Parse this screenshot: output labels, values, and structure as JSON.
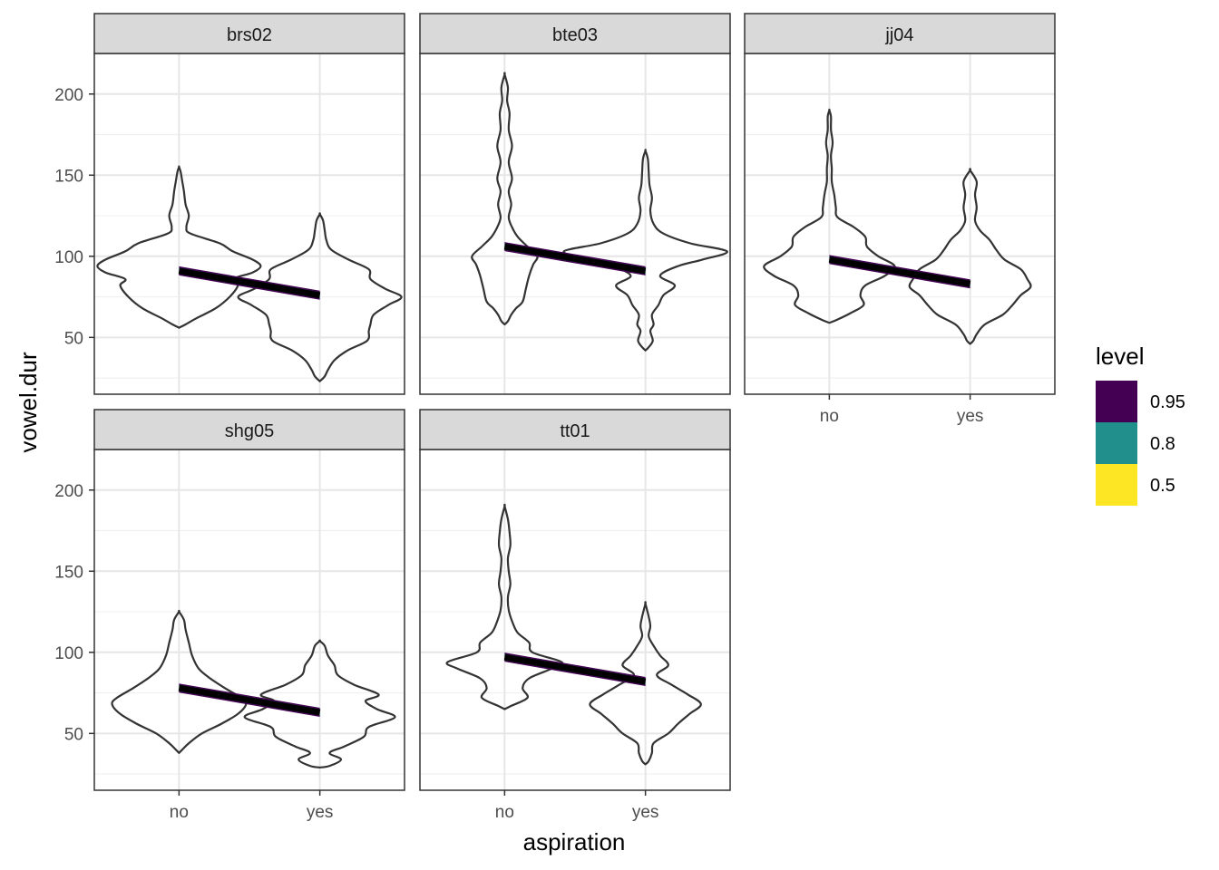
{
  "chart_data": {
    "type": "violin",
    "xlabel": "aspiration",
    "ylabel": "vowel.dur",
    "categories": [
      "no",
      "yes"
    ],
    "ylim": [
      15,
      225
    ],
    "yticks": [
      50,
      100,
      150,
      200
    ],
    "grid": true,
    "legend": {
      "title": "level",
      "placement": "right",
      "entries": [
        {
          "label": "0.95",
          "color": "#440154"
        },
        {
          "label": "0.8",
          "color": "#21908C"
        },
        {
          "label": "0.5",
          "color": "#FDE725"
        }
      ]
    },
    "panels": [
      {
        "name": "brs02",
        "x_axis_shown": false,
        "fit_line": {
          "no": 91,
          "yes": 76
        },
        "violins": [
          {
            "category": "no",
            "profile": [
              [
                56,
                0.0
              ],
              [
                58,
                0.08
              ],
              [
                62,
                0.22
              ],
              [
                68,
                0.45
              ],
              [
                75,
                0.62
              ],
              [
                82,
                0.72
              ],
              [
                86,
                0.66
              ],
              [
                90,
                0.9
              ],
              [
                94,
                1.0
              ],
              [
                98,
                0.9
              ],
              [
                103,
                0.66
              ],
              [
                108,
                0.5
              ],
              [
                114,
                0.14
              ],
              [
                118,
                0.09
              ],
              [
                125,
                0.12
              ],
              [
                132,
                0.08
              ],
              [
                140,
                0.06
              ],
              [
                146,
                0.04
              ],
              [
                152,
                0.02
              ],
              [
                155,
                0.0
              ]
            ]
          },
          {
            "category": "yes",
            "profile": [
              [
                23,
                0.0
              ],
              [
                26,
                0.06
              ],
              [
                30,
                0.1
              ],
              [
                36,
                0.18
              ],
              [
                42,
                0.34
              ],
              [
                48,
                0.58
              ],
              [
                54,
                0.6
              ],
              [
                58,
                0.62
              ],
              [
                64,
                0.66
              ],
              [
                70,
                0.84
              ],
              [
                75,
                1.0
              ],
              [
                80,
                0.8
              ],
              [
                86,
                0.62
              ],
              [
                92,
                0.6
              ],
              [
                98,
                0.35
              ],
              [
                104,
                0.14
              ],
              [
                110,
                0.08
              ],
              [
                116,
                0.06
              ],
              [
                122,
                0.04
              ],
              [
                126,
                0.0
              ]
            ]
          }
        ]
      },
      {
        "name": "bte03",
        "x_axis_shown": false,
        "fit_line": {
          "no": 106,
          "yes": 91
        },
        "violins": [
          {
            "category": "no",
            "profile": [
              [
                58,
                0.0
              ],
              [
                60,
                0.04
              ],
              [
                64,
                0.08
              ],
              [
                68,
                0.14
              ],
              [
                72,
                0.22
              ],
              [
                80,
                0.26
              ],
              [
                88,
                0.3
              ],
              [
                95,
                0.35
              ],
              [
                100,
                0.4
              ],
              [
                106,
                0.28
              ],
              [
                112,
                0.16
              ],
              [
                118,
                0.09
              ],
              [
                124,
                0.05
              ],
              [
                132,
                0.08
              ],
              [
                140,
                0.05
              ],
              [
                148,
                0.09
              ],
              [
                158,
                0.05
              ],
              [
                168,
                0.09
              ],
              [
                178,
                0.05
              ],
              [
                188,
                0.06
              ],
              [
                196,
                0.03
              ],
              [
                204,
                0.04
              ],
              [
                212,
                0.0
              ]
            ]
          },
          {
            "category": "yes",
            "profile": [
              [
                42,
                0.0
              ],
              [
                44,
                0.04
              ],
              [
                48,
                0.09
              ],
              [
                54,
                0.06
              ],
              [
                58,
                0.1
              ],
              [
                64,
                0.08
              ],
              [
                70,
                0.16
              ],
              [
                76,
                0.22
              ],
              [
                82,
                0.36
              ],
              [
                88,
                0.18
              ],
              [
                94,
                0.4
              ],
              [
                98,
                0.7
              ],
              [
                103,
                1.0
              ],
              [
                108,
                0.55
              ],
              [
                114,
                0.22
              ],
              [
                120,
                0.1
              ],
              [
                128,
                0.06
              ],
              [
                136,
                0.08
              ],
              [
                144,
                0.05
              ],
              [
                152,
                0.04
              ],
              [
                160,
                0.03
              ],
              [
                165,
                0.0
              ]
            ]
          }
        ]
      },
      {
        "name": "jj04",
        "x_axis_shown": true,
        "fit_line": {
          "no": 98,
          "yes": 83
        },
        "violins": [
          {
            "category": "no",
            "profile": [
              [
                59,
                0.0
              ],
              [
                61,
                0.1
              ],
              [
                65,
                0.26
              ],
              [
                70,
                0.42
              ],
              [
                76,
                0.38
              ],
              [
                82,
                0.44
              ],
              [
                88,
                0.68
              ],
              [
                94,
                0.8
              ],
              [
                100,
                0.6
              ],
              [
                106,
                0.46
              ],
              [
                112,
                0.44
              ],
              [
                118,
                0.3
              ],
              [
                124,
                0.1
              ],
              [
                130,
                0.08
              ],
              [
                138,
                0.06
              ],
              [
                146,
                0.03
              ],
              [
                154,
                0.03
              ],
              [
                162,
                0.02
              ],
              [
                170,
                0.04
              ],
              [
                178,
                0.02
              ],
              [
                186,
                0.02
              ],
              [
                190,
                0.0
              ]
            ]
          },
          {
            "category": "yes",
            "profile": [
              [
                46,
                0.0
              ],
              [
                48,
                0.04
              ],
              [
                52,
                0.08
              ],
              [
                58,
                0.18
              ],
              [
                64,
                0.4
              ],
              [
                70,
                0.52
              ],
              [
                76,
                0.62
              ],
              [
                81,
                0.74
              ],
              [
                86,
                0.7
              ],
              [
                92,
                0.62
              ],
              [
                98,
                0.42
              ],
              [
                104,
                0.32
              ],
              [
                110,
                0.24
              ],
              [
                116,
                0.12
              ],
              [
                122,
                0.06
              ],
              [
                130,
                0.08
              ],
              [
                138,
                0.06
              ],
              [
                146,
                0.08
              ],
              [
                153,
                0.0
              ]
            ]
          }
        ]
      },
      {
        "name": "shg05",
        "x_axis_shown": true,
        "fit_line": {
          "no": 78,
          "yes": 63
        },
        "violins": [
          {
            "category": "no",
            "profile": [
              [
                38,
                0.0
              ],
              [
                40,
                0.04
              ],
              [
                44,
                0.12
              ],
              [
                50,
                0.28
              ],
              [
                56,
                0.52
              ],
              [
                62,
                0.72
              ],
              [
                68,
                0.82
              ],
              [
                72,
                0.76
              ],
              [
                78,
                0.56
              ],
              [
                84,
                0.38
              ],
              [
                90,
                0.24
              ],
              [
                98,
                0.16
              ],
              [
                106,
                0.12
              ],
              [
                114,
                0.08
              ],
              [
                120,
                0.06
              ],
              [
                125,
                0.0
              ]
            ]
          },
          {
            "category": "yes",
            "profile": [
              [
                29,
                0.0
              ],
              [
                30,
                0.12
              ],
              [
                34,
                0.26
              ],
              [
                38,
                0.12
              ],
              [
                42,
                0.3
              ],
              [
                48,
                0.54
              ],
              [
                54,
                0.6
              ],
              [
                60,
                0.92
              ],
              [
                65,
                0.7
              ],
              [
                70,
                0.56
              ],
              [
                74,
                0.72
              ],
              [
                80,
                0.42
              ],
              [
                86,
                0.22
              ],
              [
                92,
                0.18
              ],
              [
                98,
                0.1
              ],
              [
                104,
                0.06
              ],
              [
                107,
                0.0
              ]
            ]
          }
        ]
      },
      {
        "name": "tt01",
        "x_axis_shown": true,
        "fit_line": {
          "no": 97,
          "yes": 82
        },
        "violins": [
          {
            "category": "no",
            "profile": [
              [
                65,
                0.0
              ],
              [
                67,
                0.08
              ],
              [
                72,
                0.28
              ],
              [
                78,
                0.22
              ],
              [
                84,
                0.3
              ],
              [
                90,
                0.58
              ],
              [
                94,
                0.7
              ],
              [
                100,
                0.34
              ],
              [
                106,
                0.3
              ],
              [
                112,
                0.16
              ],
              [
                118,
                0.1
              ],
              [
                126,
                0.05
              ],
              [
                134,
                0.04
              ],
              [
                142,
                0.07
              ],
              [
                150,
                0.05
              ],
              [
                158,
                0.04
              ],
              [
                166,
                0.07
              ],
              [
                174,
                0.06
              ],
              [
                182,
                0.04
              ],
              [
                190,
                0.0
              ]
            ]
          },
          {
            "category": "yes",
            "profile": [
              [
                31,
                0.0
              ],
              [
                33,
                0.04
              ],
              [
                38,
                0.08
              ],
              [
                44,
                0.1
              ],
              [
                50,
                0.28
              ],
              [
                56,
                0.4
              ],
              [
                62,
                0.54
              ],
              [
                68,
                0.68
              ],
              [
                74,
                0.52
              ],
              [
                80,
                0.32
              ],
              [
                86,
                0.14
              ],
              [
                92,
                0.28
              ],
              [
                98,
                0.18
              ],
              [
                104,
                0.1
              ],
              [
                110,
                0.04
              ],
              [
                116,
                0.06
              ],
              [
                122,
                0.04
              ],
              [
                130,
                0.0
              ]
            ]
          }
        ]
      }
    ]
  }
}
